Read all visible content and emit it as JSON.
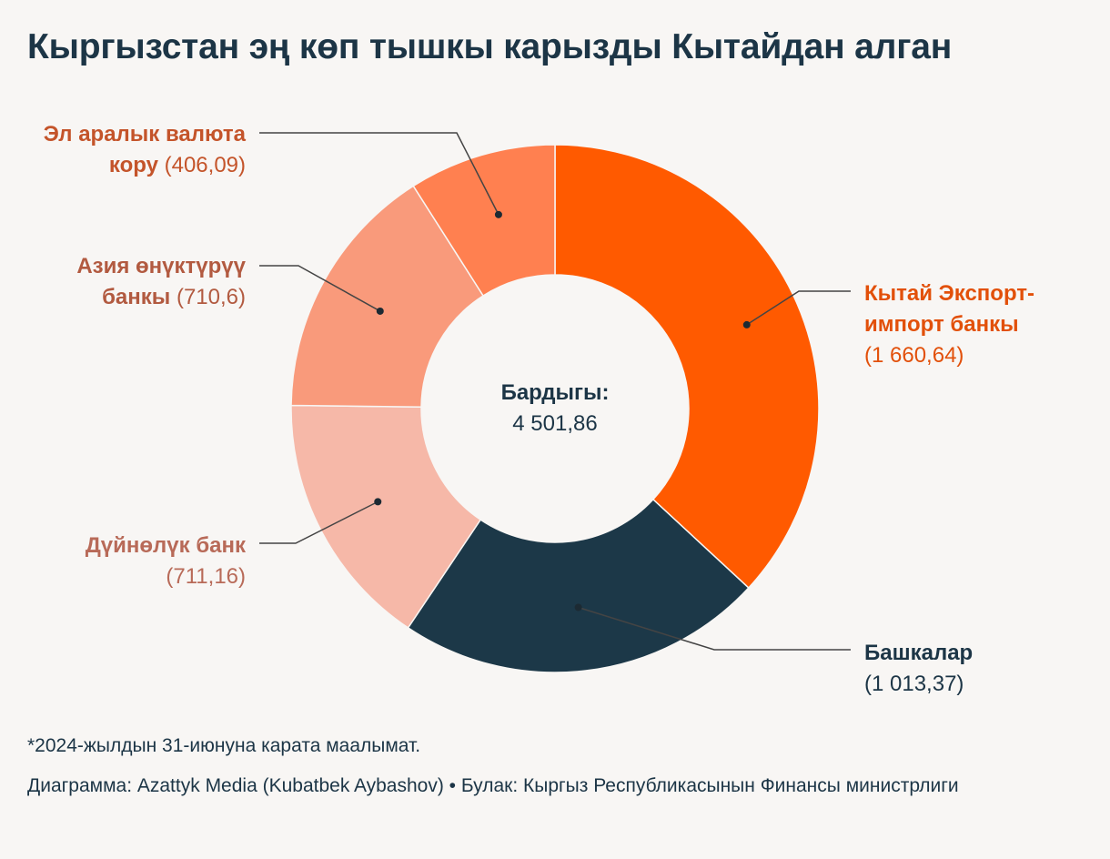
{
  "title": "Кыргызстан эң көп тышкы карызды Кытайдан алган",
  "center": {
    "label": "Бардыгы:",
    "value": "4 501,86"
  },
  "chart_data": {
    "type": "pie",
    "style": "donut",
    "title": "Кыргызстан эң көп тышкы карызды Кытайдан алган",
    "total": 4501.86,
    "slices": [
      {
        "key": "china",
        "name_line1": "Кытай Экспорт-",
        "name_line2": "импорт банкы",
        "value": 1660.64,
        "value_text": "(1 660,64)",
        "color": "#ff5a00",
        "text_color": "#e2500a"
      },
      {
        "key": "others",
        "name_line1": "Башкалар",
        "value": 1013.37,
        "value_text": "(1 013,37)",
        "color": "#1c3848",
        "text_color": "#1c3546"
      },
      {
        "key": "wb",
        "name_line1": "Дүйнөлүк банк",
        "value": 711.16,
        "value_text": "(711,16)",
        "color": "#f6b8a8",
        "text_color": "#b86a58"
      },
      {
        "key": "adb",
        "name_line1": "Азия өнүктүрүү",
        "name_line2": "банкы",
        "value": 710.6,
        "value_text": "(710,6)",
        "color": "#f99a7b",
        "text_color": "#b25a40"
      },
      {
        "key": "imf",
        "name_line1": "Эл аралык валюта",
        "name_line2": "кору",
        "value": 406.09,
        "value_text": "(406,09)",
        "color": "#ff8050",
        "text_color": "#c4542a"
      }
    ]
  },
  "footer": {
    "note": "*2024-жылдын 31-июнуна карата маалымат.",
    "credit": "Диаграмма: Azattyk Media (Kubatbek Aybashov) • Булак: Кыргыз Республикасынын Финансы министрлиги"
  }
}
